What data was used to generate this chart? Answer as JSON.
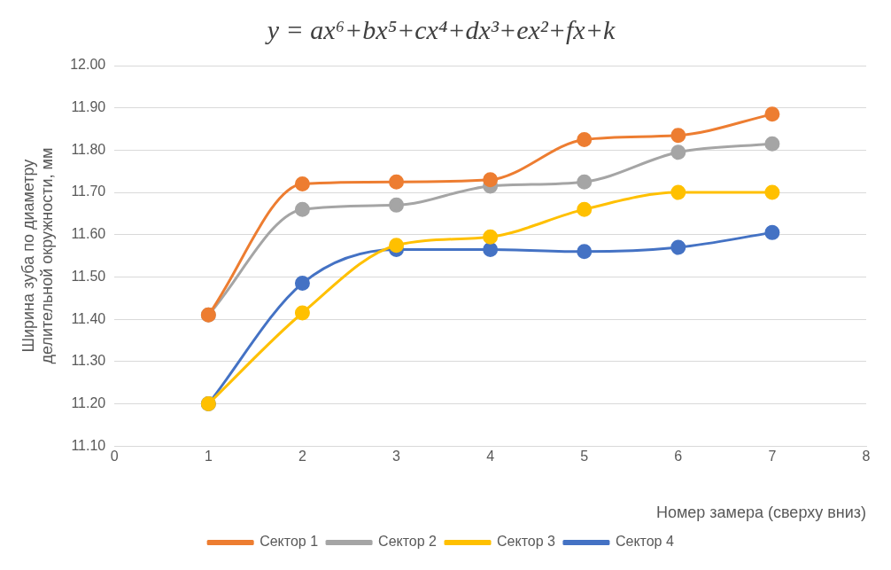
{
  "chart_data": {
    "type": "line",
    "title": "y = ax⁶+bx⁵+cx⁴+dx³+ex²+fx+k",
    "xlabel": "Номер замера (сверху вниз)",
    "ylabel": "Ширина зуба по диаметру делительной окружности, мм",
    "x": [
      1,
      2,
      3,
      4,
      5,
      6,
      7
    ],
    "xlim": [
      0,
      8
    ],
    "xticks": [
      0,
      1,
      2,
      3,
      4,
      5,
      6,
      7,
      8
    ],
    "ylim": [
      11.1,
      12.0
    ],
    "yticks": [
      {
        "value": 11.1,
        "label": "11.10"
      },
      {
        "value": 11.2,
        "label": "11.20"
      },
      {
        "value": 11.3,
        "label": "11.30"
      },
      {
        "value": 11.4,
        "label": "11.40"
      },
      {
        "value": 11.5,
        "label": "11.50"
      },
      {
        "value": 11.6,
        "label": "11.60"
      },
      {
        "value": 11.7,
        "label": "11.70"
      },
      {
        "value": 11.8,
        "label": "11.80"
      },
      {
        "value": 11.9,
        "label": "11.90"
      },
      {
        "value": 12.0,
        "label": "12.00"
      }
    ],
    "grid": "y",
    "legend": "bottom",
    "marker": "circle",
    "line_style": "solid",
    "series": [
      {
        "name": "Сектор 1",
        "color": "#ed7d31",
        "values": [
          11.41,
          11.72,
          11.725,
          11.73,
          11.825,
          11.835,
          11.885
        ]
      },
      {
        "name": "Сектор 2",
        "color": "#a5a5a5",
        "values": [
          11.41,
          11.66,
          11.67,
          11.715,
          11.725,
          11.795,
          11.815
        ]
      },
      {
        "name": "Сектор 3",
        "color": "#ffc000",
        "values": [
          11.2,
          11.415,
          11.575,
          11.595,
          11.66,
          11.7,
          11.7
        ]
      },
      {
        "name": "Сектор 4",
        "color": "#4472c4",
        "values": [
          11.2,
          11.485,
          11.565,
          11.565,
          11.56,
          11.57,
          11.605
        ]
      }
    ]
  }
}
